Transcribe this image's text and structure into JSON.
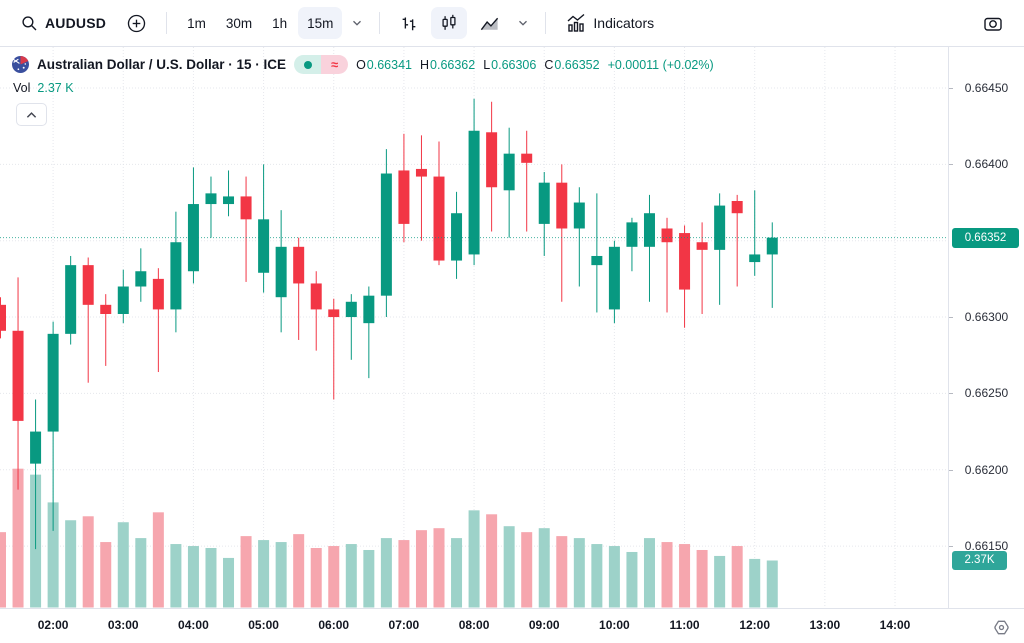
{
  "toolbar": {
    "symbol": "AUDUSD",
    "timeframes": [
      {
        "label": "1m",
        "active": false
      },
      {
        "label": "30m",
        "active": false
      },
      {
        "label": "1h",
        "active": false
      },
      {
        "label": "15m",
        "active": true
      }
    ],
    "chart_types": [
      {
        "name": "bars",
        "active": false
      },
      {
        "name": "candles",
        "active": true
      },
      {
        "name": "area",
        "active": false
      }
    ],
    "indicators_label": "Indicators"
  },
  "legend": {
    "title": "Australian Dollar / U.S. Dollar · 15 · ICE",
    "approx_symbol": "≈",
    "ohlc": [
      {
        "label": "O",
        "value": "0.66341"
      },
      {
        "label": "H",
        "value": "0.66362"
      },
      {
        "label": "L",
        "value": "0.66306"
      },
      {
        "label": "C",
        "value": "0.66352"
      }
    ],
    "change": "+0.00011 (+0.02%)",
    "vol_label": "Vol",
    "vol_value": "2.37 K"
  },
  "price_axis": {
    "ticks": [
      {
        "label": "0.66450",
        "price": 0.6645
      },
      {
        "label": "0.66400",
        "price": 0.664
      },
      {
        "label": "0.66300",
        "price": 0.663
      },
      {
        "label": "0.66250",
        "price": 0.6625
      },
      {
        "label": "0.66200",
        "price": 0.662
      },
      {
        "label": "0.66150",
        "price": 0.6615
      }
    ],
    "price_badge": "0.66352",
    "vol_badge": "2.37K"
  },
  "time_axis": {
    "ticks": [
      "02:00",
      "03:00",
      "04:00",
      "05:00",
      "06:00",
      "07:00",
      "08:00",
      "09:00",
      "10:00",
      "11:00",
      "12:00",
      "13:00",
      "14:00"
    ]
  },
  "colors": {
    "up": "#089981",
    "down": "#f23645",
    "vol_up": "#9dd2c9",
    "vol_down": "#f6a6ae",
    "grid": "#dfe2e8",
    "price_line": "#089981"
  },
  "chart_data": {
    "type": "candlestick+volume",
    "title": "Australian Dollar / U.S. Dollar",
    "interval": "15",
    "exchange": "ICE",
    "last_price": 0.66352,
    "last_volume_k": 2.37,
    "grid_prices": [
      0.6645,
      0.664,
      0.6635,
      0.663,
      0.6625,
      0.662,
      0.6615
    ],
    "candles": [
      [
        "01:15",
        0.66308,
        0.66313,
        0.66286,
        0.66291,
        3.8
      ],
      [
        "01:30",
        0.66291,
        0.66326,
        0.66187,
        0.66232,
        7.0
      ],
      [
        "01:45",
        0.66204,
        0.66246,
        0.66148,
        0.66225,
        6.7
      ],
      [
        "02:00",
        0.66225,
        0.66297,
        0.6616,
        0.66289,
        5.3
      ],
      [
        "02:15",
        0.66289,
        0.6634,
        0.66282,
        0.66334,
        4.4
      ],
      [
        "02:30",
        0.66334,
        0.66339,
        0.66257,
        0.66308,
        4.6
      ],
      [
        "02:45",
        0.66308,
        0.66315,
        0.66268,
        0.66302,
        3.3
      ],
      [
        "03:00",
        0.66302,
        0.66331,
        0.66296,
        0.6632,
        4.3
      ],
      [
        "03:15",
        0.6632,
        0.66345,
        0.6631,
        0.6633,
        3.5
      ],
      [
        "03:30",
        0.66325,
        0.66332,
        0.66264,
        0.66305,
        4.8
      ],
      [
        "03:45",
        0.66305,
        0.66369,
        0.6629,
        0.66349,
        3.2
      ],
      [
        "04:00",
        0.6633,
        0.66398,
        0.66322,
        0.66374,
        3.1
      ],
      [
        "04:15",
        0.66374,
        0.66392,
        0.66352,
        0.66381,
        3.0
      ],
      [
        "04:30",
        0.66374,
        0.66396,
        0.66366,
        0.66379,
        2.5
      ],
      [
        "04:45",
        0.66379,
        0.66392,
        0.66323,
        0.66364,
        3.6
      ],
      [
        "05:00",
        0.66329,
        0.664,
        0.66316,
        0.66364,
        3.4
      ],
      [
        "05:15",
        0.66313,
        0.6637,
        0.6629,
        0.66346,
        3.3
      ],
      [
        "05:30",
        0.66346,
        0.66352,
        0.66285,
        0.66322,
        3.7
      ],
      [
        "05:45",
        0.66322,
        0.6633,
        0.66278,
        0.66305,
        3.0
      ],
      [
        "06:00",
        0.66305,
        0.66312,
        0.66246,
        0.663,
        3.1
      ],
      [
        "06:15",
        0.663,
        0.66315,
        0.66272,
        0.6631,
        3.2
      ],
      [
        "06:30",
        0.66296,
        0.6632,
        0.6626,
        0.66314,
        2.9
      ],
      [
        "06:45",
        0.66314,
        0.6641,
        0.663,
        0.66394,
        3.5
      ],
      [
        "07:00",
        0.66396,
        0.6642,
        0.66349,
        0.66361,
        3.4
      ],
      [
        "07:15",
        0.66397,
        0.66419,
        0.6635,
        0.66392,
        3.9
      ],
      [
        "07:30",
        0.66392,
        0.66415,
        0.66334,
        0.66337,
        4.0
      ],
      [
        "07:45",
        0.66337,
        0.66382,
        0.66325,
        0.66368,
        3.5
      ],
      [
        "08:00",
        0.66341,
        0.66443,
        0.66334,
        0.66422,
        4.9
      ],
      [
        "08:15",
        0.66421,
        0.66441,
        0.66356,
        0.66385,
        4.7
      ],
      [
        "08:30",
        0.66383,
        0.66424,
        0.66352,
        0.66407,
        4.1
      ],
      [
        "08:45",
        0.66407,
        0.66422,
        0.66356,
        0.66401,
        3.8
      ],
      [
        "09:00",
        0.66361,
        0.66395,
        0.6634,
        0.66388,
        4.0
      ],
      [
        "09:15",
        0.66388,
        0.664,
        0.6631,
        0.66358,
        3.6
      ],
      [
        "09:30",
        0.66358,
        0.66385,
        0.6632,
        0.66375,
        3.5
      ],
      [
        "09:45",
        0.66334,
        0.66381,
        0.66303,
        0.6634,
        3.2
      ],
      [
        "10:00",
        0.66305,
        0.6635,
        0.66296,
        0.66346,
        3.1
      ],
      [
        "10:15",
        0.66346,
        0.66365,
        0.6633,
        0.66362,
        2.8
      ],
      [
        "10:30",
        0.66346,
        0.6638,
        0.6631,
        0.66368,
        3.5
      ],
      [
        "10:45",
        0.66358,
        0.66365,
        0.66303,
        0.66349,
        3.3
      ],
      [
        "11:00",
        0.66355,
        0.6636,
        0.66293,
        0.66318,
        3.2
      ],
      [
        "11:15",
        0.66349,
        0.66362,
        0.66302,
        0.66344,
        2.9
      ],
      [
        "11:30",
        0.66344,
        0.66381,
        0.66308,
        0.66373,
        2.6
      ],
      [
        "11:45",
        0.66376,
        0.6638,
        0.6632,
        0.66368,
        3.1
      ],
      [
        "12:00",
        0.66336,
        0.66383,
        0.66327,
        0.66341,
        2.45
      ],
      [
        "12:15",
        0.66341,
        0.66362,
        0.66306,
        0.66352,
        2.37
      ]
    ]
  }
}
